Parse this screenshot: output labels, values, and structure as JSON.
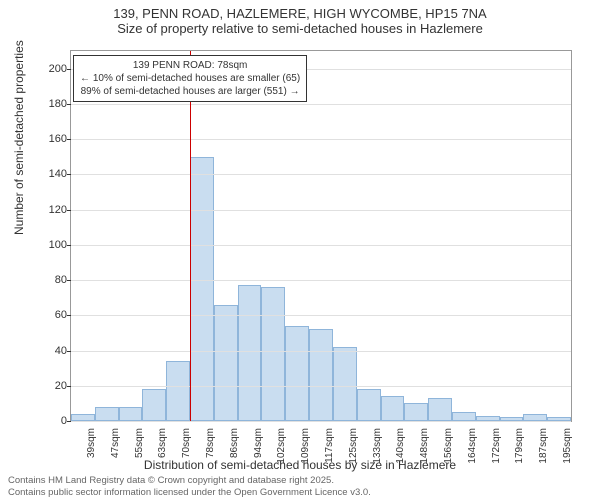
{
  "title": {
    "line1": "139, PENN ROAD, HAZLEMERE, HIGH WYCOMBE, HP15 7NA",
    "line2": "Size of property relative to semi-detached houses in Hazlemere",
    "fontsize": 13,
    "color": "#333333"
  },
  "chart": {
    "type": "histogram",
    "background_color": "#ffffff",
    "border_color": "#999999",
    "grid_color": "#e0e0e0",
    "bar_fill": "#c9ddf0",
    "bar_border": "#8fb5da",
    "ref_line_color": "#cc0000",
    "ref_line_x_index": 5,
    "ylim": [
      0,
      210
    ],
    "yticks": [
      0,
      20,
      40,
      60,
      80,
      100,
      120,
      140,
      160,
      180,
      200
    ],
    "xtick_labels": [
      "39sqm",
      "47sqm",
      "55sqm",
      "63sqm",
      "70sqm",
      "78sqm",
      "86sqm",
      "94sqm",
      "102sqm",
      "109sqm",
      "117sqm",
      "125sqm",
      "133sqm",
      "140sqm",
      "148sqm",
      "156sqm",
      "164sqm",
      "172sqm",
      "179sqm",
      "187sqm",
      "195sqm"
    ],
    "values": [
      4,
      8,
      8,
      18,
      34,
      150,
      66,
      77,
      76,
      54,
      52,
      42,
      18,
      14,
      10,
      13,
      5,
      3,
      2,
      4,
      2
    ],
    "ylabel": "Number of semi-detached properties",
    "xlabel": "Distribution of semi-detached houses by size in Hazlemere",
    "label_fontsize": 12,
    "tick_fontsize": 11,
    "xtick_fontsize": 10
  },
  "info_box": {
    "line1": "139 PENN ROAD: 78sqm",
    "line2": "← 10% of semi-detached houses are smaller (65)",
    "line3": "89% of semi-detached houses are larger (551) →",
    "border_color": "#333333",
    "background": "#ffffff",
    "fontsize": 10
  },
  "footer": {
    "line1": "Contains HM Land Registry data © Crown copyright and database right 2025.",
    "line2": "Contains public sector information licensed under the Open Government Licence v3.0.",
    "fontsize": 9.5,
    "color": "#666666"
  }
}
